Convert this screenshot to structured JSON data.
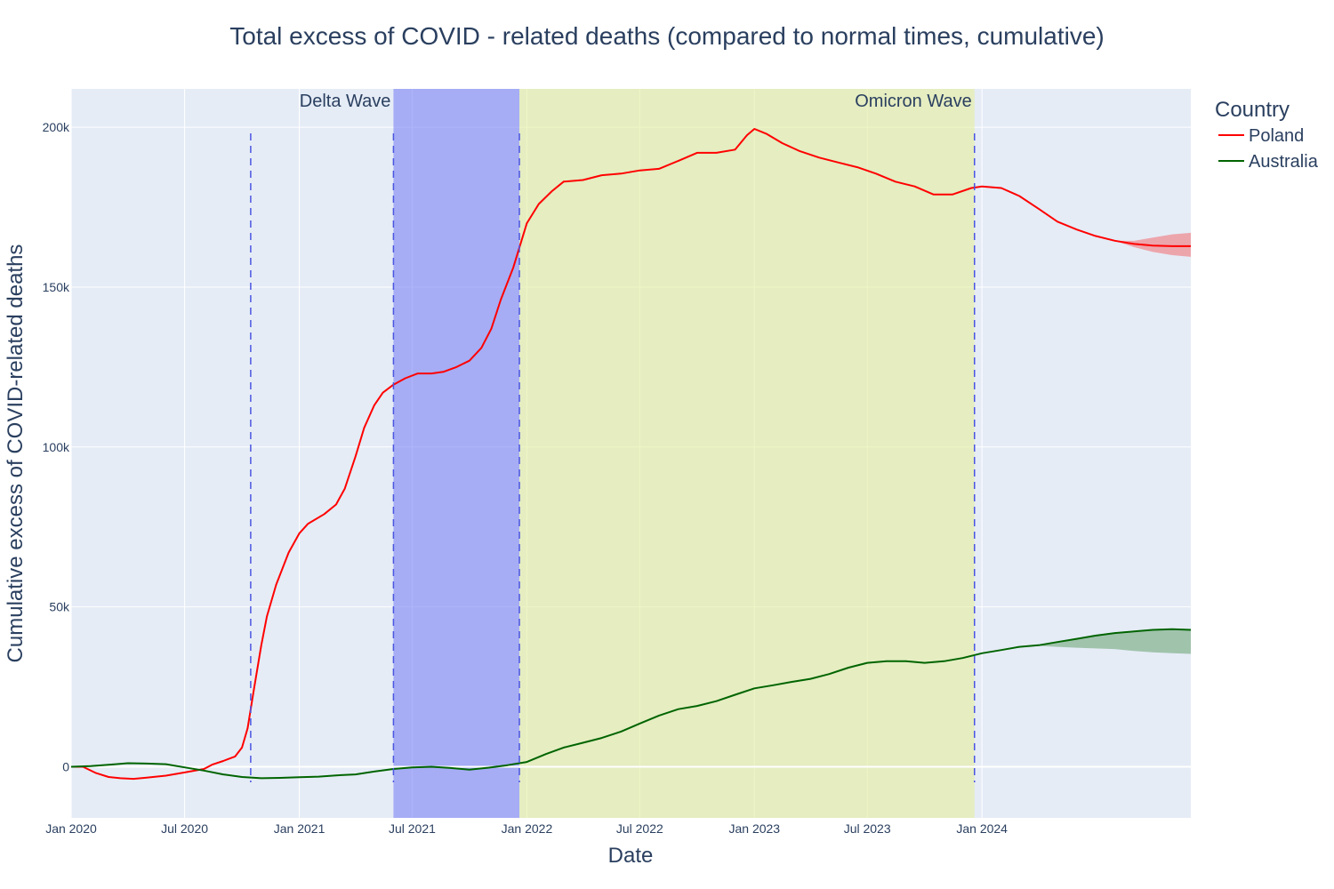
{
  "chart_data": {
    "type": "line",
    "title": "Total excess of COVID - related deaths (compared to normal times, cumulative)",
    "xlabel": "Date",
    "ylabel": "Cumulative excess of COVID-related deaths",
    "xlim": [
      "2020-01-01",
      "2024-12-01"
    ],
    "ylim": [
      -16000,
      212000
    ],
    "grid": true,
    "legend_title": "Country",
    "legend_position": "top-right, outside plot",
    "x_ticks": [
      {
        "date": "2020-01-01",
        "label": "Jan 2020"
      },
      {
        "date": "2020-07-01",
        "label": "Jul 2020"
      },
      {
        "date": "2021-01-01",
        "label": "Jan 2021"
      },
      {
        "date": "2021-07-01",
        "label": "Jul 2021"
      },
      {
        "date": "2022-01-01",
        "label": "Jan 2022"
      },
      {
        "date": "2022-07-01",
        "label": "Jul 2022"
      },
      {
        "date": "2023-01-01",
        "label": "Jan 2023"
      },
      {
        "date": "2023-07-01",
        "label": "Jul 2023"
      },
      {
        "date": "2024-01-01",
        "label": "Jan 2024"
      }
    ],
    "y_ticks": [
      {
        "value": 0,
        "label": "0"
      },
      {
        "value": 50000,
        "label": "50k"
      },
      {
        "value": 100000,
        "label": "100k"
      },
      {
        "value": 150000,
        "label": "150k"
      },
      {
        "value": 200000,
        "label": "200k"
      }
    ],
    "bands": [
      {
        "label": "Delta Wave",
        "start": "2021-06-01",
        "end": "2021-12-20",
        "color": "#7b83f5",
        "label_anchor": "end",
        "label_at": "start"
      },
      {
        "label": "Omicron Wave",
        "start": "2021-12-20",
        "end": "2023-12-20",
        "color": "#e5ee9e",
        "label_anchor": "end",
        "label_at": "end"
      }
    ],
    "vertical_lines": [
      {
        "date": "2020-10-15",
        "color": "#4a55e0"
      },
      {
        "date": "2021-06-01",
        "color": "#4a55e0"
      },
      {
        "date": "2021-12-20",
        "color": "#4a55e0"
      },
      {
        "date": "2023-12-20",
        "color": "#4a55e0"
      }
    ],
    "series": [
      {
        "name": "Poland",
        "color": "#ff0000",
        "points": [
          [
            "2020-01-01",
            0
          ],
          [
            "2020-01-20",
            0
          ],
          [
            "2020-02-10",
            -2000
          ],
          [
            "2020-03-01",
            -3200
          ],
          [
            "2020-03-20",
            -3600
          ],
          [
            "2020-04-10",
            -3800
          ],
          [
            "2020-05-01",
            -3400
          ],
          [
            "2020-06-01",
            -2800
          ],
          [
            "2020-07-01",
            -1800
          ],
          [
            "2020-08-01",
            -700
          ],
          [
            "2020-08-15",
            700
          ],
          [
            "2020-09-01",
            1800
          ],
          [
            "2020-09-20",
            3200
          ],
          [
            "2020-10-01",
            6000
          ],
          [
            "2020-10-10",
            12000
          ],
          [
            "2020-10-20",
            24000
          ],
          [
            "2020-11-01",
            38000
          ],
          [
            "2020-11-10",
            47000
          ],
          [
            "2020-11-25",
            57000
          ],
          [
            "2020-12-15",
            67000
          ],
          [
            "2021-01-01",
            73000
          ],
          [
            "2021-01-15",
            76000
          ],
          [
            "2021-02-10",
            79000
          ],
          [
            "2021-03-01",
            82000
          ],
          [
            "2021-03-15",
            87000
          ],
          [
            "2021-04-01",
            97000
          ],
          [
            "2021-04-15",
            106000
          ],
          [
            "2021-05-01",
            113000
          ],
          [
            "2021-05-15",
            117000
          ],
          [
            "2021-06-01",
            119500
          ],
          [
            "2021-06-20",
            121500
          ],
          [
            "2021-07-10",
            123000
          ],
          [
            "2021-08-01",
            123000
          ],
          [
            "2021-08-20",
            123500
          ],
          [
            "2021-09-10",
            125000
          ],
          [
            "2021-10-01",
            127000
          ],
          [
            "2021-10-20",
            131000
          ],
          [
            "2021-11-05",
            137000
          ],
          [
            "2021-11-20",
            146000
          ],
          [
            "2021-12-10",
            156000
          ],
          [
            "2022-01-01",
            170000
          ],
          [
            "2022-01-20",
            176000
          ],
          [
            "2022-02-10",
            180000
          ],
          [
            "2022-03-01",
            183000
          ],
          [
            "2022-04-01",
            183500
          ],
          [
            "2022-05-01",
            185000
          ],
          [
            "2022-06-01",
            185500
          ],
          [
            "2022-07-01",
            186500
          ],
          [
            "2022-08-01",
            187000
          ],
          [
            "2022-09-01",
            189500
          ],
          [
            "2022-10-01",
            192000
          ],
          [
            "2022-11-01",
            192000
          ],
          [
            "2022-12-01",
            193000
          ],
          [
            "2022-12-20",
            197500
          ],
          [
            "2023-01-01",
            199500
          ],
          [
            "2023-01-20",
            198000
          ],
          [
            "2023-02-15",
            195000
          ],
          [
            "2023-03-15",
            192500
          ],
          [
            "2023-04-15",
            190500
          ],
          [
            "2023-05-15",
            189000
          ],
          [
            "2023-06-15",
            187500
          ],
          [
            "2023-07-15",
            185500
          ],
          [
            "2023-08-15",
            183000
          ],
          [
            "2023-09-15",
            181500
          ],
          [
            "2023-10-15",
            179000
          ],
          [
            "2023-11-15",
            179000
          ],
          [
            "2023-12-15",
            181000
          ],
          [
            "2024-01-01",
            181500
          ],
          [
            "2024-02-01",
            181000
          ],
          [
            "2024-03-01",
            178500
          ],
          [
            "2024-04-01",
            174500
          ],
          [
            "2024-05-01",
            170500
          ],
          [
            "2024-06-01",
            168000
          ],
          [
            "2024-07-01",
            166000
          ],
          [
            "2024-08-01",
            164500
          ],
          [
            "2024-09-01",
            163500
          ],
          [
            "2024-10-01",
            163000
          ],
          [
            "2024-11-01",
            162800
          ],
          [
            "2024-12-01",
            162800
          ]
        ],
        "uncertainty": [
          [
            "2024-08-01",
            164500,
            164500
          ],
          [
            "2024-09-01",
            162500,
            164500
          ],
          [
            "2024-10-01",
            161000,
            165500
          ],
          [
            "2024-11-01",
            160000,
            166500
          ],
          [
            "2024-12-01",
            159500,
            167000
          ]
        ]
      },
      {
        "name": "Australia",
        "color": "#006400",
        "points": [
          [
            "2020-01-01",
            0
          ],
          [
            "2020-02-01",
            200
          ],
          [
            "2020-03-01",
            600
          ],
          [
            "2020-04-01",
            1100
          ],
          [
            "2020-05-01",
            1000
          ],
          [
            "2020-06-01",
            800
          ],
          [
            "2020-07-01",
            -200
          ],
          [
            "2020-08-01",
            -1200
          ],
          [
            "2020-09-01",
            -2400
          ],
          [
            "2020-10-01",
            -3200
          ],
          [
            "2020-11-01",
            -3600
          ],
          [
            "2020-12-01",
            -3500
          ],
          [
            "2021-01-01",
            -3300
          ],
          [
            "2021-02-01",
            -3100
          ],
          [
            "2021-03-01",
            -2700
          ],
          [
            "2021-04-01",
            -2400
          ],
          [
            "2021-05-01",
            -1500
          ],
          [
            "2021-06-01",
            -700
          ],
          [
            "2021-07-01",
            -200
          ],
          [
            "2021-08-01",
            0
          ],
          [
            "2021-09-01",
            -400
          ],
          [
            "2021-10-01",
            -900
          ],
          [
            "2021-11-01",
            -300
          ],
          [
            "2021-12-01",
            500
          ],
          [
            "2022-01-01",
            1500
          ],
          [
            "2022-02-01",
            4000
          ],
          [
            "2022-03-01",
            6000
          ],
          [
            "2022-04-01",
            7500
          ],
          [
            "2022-05-01",
            9000
          ],
          [
            "2022-06-01",
            11000
          ],
          [
            "2022-07-01",
            13500
          ],
          [
            "2022-08-01",
            16000
          ],
          [
            "2022-09-01",
            18000
          ],
          [
            "2022-10-01",
            19000
          ],
          [
            "2022-11-01",
            20500
          ],
          [
            "2022-12-01",
            22500
          ],
          [
            "2023-01-01",
            24500
          ],
          [
            "2023-02-01",
            25500
          ],
          [
            "2023-03-01",
            26500
          ],
          [
            "2023-04-01",
            27500
          ],
          [
            "2023-05-01",
            29000
          ],
          [
            "2023-06-01",
            31000
          ],
          [
            "2023-07-01",
            32500
          ],
          [
            "2023-08-01",
            33000
          ],
          [
            "2023-09-01",
            33000
          ],
          [
            "2023-10-01",
            32500
          ],
          [
            "2023-11-01",
            33000
          ],
          [
            "2023-12-01",
            34000
          ],
          [
            "2024-01-01",
            35500
          ],
          [
            "2024-02-01",
            36500
          ],
          [
            "2024-03-01",
            37500
          ],
          [
            "2024-04-01",
            38000
          ],
          [
            "2024-05-01",
            39000
          ],
          [
            "2024-06-01",
            40000
          ],
          [
            "2024-07-01",
            41000
          ],
          [
            "2024-08-01",
            41800
          ],
          [
            "2024-09-01",
            42300
          ],
          [
            "2024-10-01",
            42800
          ],
          [
            "2024-11-01",
            43000
          ],
          [
            "2024-12-01",
            42800
          ]
        ],
        "uncertainty": [
          [
            "2024-03-01",
            37500,
            37500
          ],
          [
            "2024-04-01",
            37800,
            38200
          ],
          [
            "2024-05-01",
            37500,
            39200
          ],
          [
            "2024-06-01",
            37200,
            40200
          ],
          [
            "2024-07-01",
            37000,
            41200
          ],
          [
            "2024-08-01",
            36800,
            42000
          ],
          [
            "2024-09-01",
            36200,
            42500
          ],
          [
            "2024-10-01",
            35800,
            42900
          ],
          [
            "2024-11-01",
            35500,
            43100
          ],
          [
            "2024-12-01",
            35300,
            43000
          ]
        ]
      }
    ]
  }
}
